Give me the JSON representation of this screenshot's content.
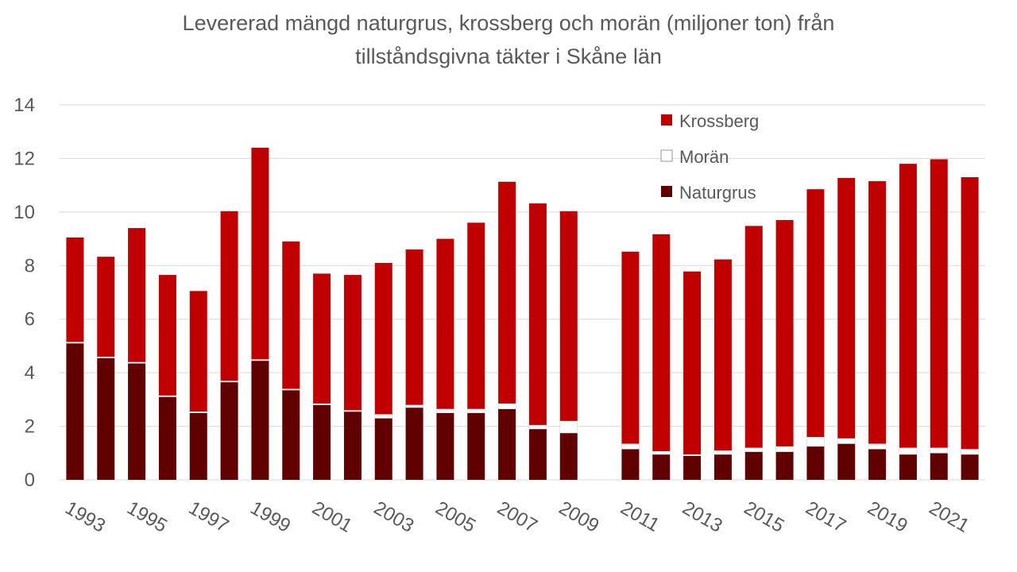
{
  "title_line1": "Levererad mängd naturgrus, krossberg och morän (miljoner ton) från",
  "title_line2": "tillståndsgivna täkter i Skåne län",
  "colors": {
    "krossberg": "#C00000",
    "moran": "#FFFFFF",
    "naturgrus": "#600000",
    "grid": "#D9D9D9",
    "text": "#595959"
  },
  "chart_data": {
    "type": "bar",
    "stacked": true,
    "title": "Levererad mängd naturgrus, krossberg och morän (miljoner ton) från tillståndsgivna täkter i Skåne län",
    "xlabel": "",
    "ylabel": "",
    "ylim": [
      0,
      14
    ],
    "yticks": [
      0,
      2,
      4,
      6,
      8,
      10,
      12,
      14
    ],
    "grid": true,
    "legend_position": "top-right",
    "categories": [
      "1993",
      "1994",
      "1995",
      "1996",
      "1997",
      "1998",
      "1999",
      "2000",
      "2001",
      "2002",
      "2003",
      "2004",
      "2005",
      "2006",
      "2007",
      "2008",
      "2009",
      "2010",
      "2011",
      "2012",
      "2013",
      "2014",
      "2015",
      "2016",
      "2017",
      "2018",
      "2019",
      "2020",
      "2021",
      "2022"
    ],
    "xtick_labels": [
      "1993",
      "1995",
      "1997",
      "1999",
      "2001",
      "2003",
      "2005",
      "2007",
      "2009",
      "2011",
      "2013",
      "2015",
      "2017",
      "2019",
      "2021"
    ],
    "series": [
      {
        "name": "Naturgrus",
        "color": "#600000",
        "values": [
          5.1,
          4.55,
          4.35,
          3.1,
          2.5,
          3.65,
          4.45,
          3.35,
          2.8,
          2.55,
          2.3,
          2.7,
          2.5,
          2.5,
          2.65,
          1.9,
          1.75,
          null,
          1.15,
          0.95,
          0.9,
          0.95,
          1.05,
          1.05,
          1.25,
          1.35,
          1.15,
          0.95,
          1.0,
          0.95
        ]
      },
      {
        "name": "Morän",
        "color": "#FFFFFF",
        "values": [
          0.05,
          0.05,
          0.05,
          0.05,
          0.05,
          0.05,
          0.05,
          0.05,
          0.05,
          0.05,
          0.15,
          0.1,
          0.15,
          0.15,
          0.2,
          0.15,
          0.45,
          null,
          0.2,
          0.12,
          0.05,
          0.15,
          0.15,
          0.2,
          0.35,
          0.2,
          0.2,
          0.25,
          0.2,
          0.2
        ]
      },
      {
        "name": "Krossberg",
        "color": "#C00000",
        "values": [
          3.9,
          3.73,
          5.0,
          4.5,
          4.5,
          6.33,
          7.9,
          5.5,
          4.85,
          5.05,
          5.65,
          5.8,
          6.35,
          6.95,
          8.28,
          8.27,
          7.83,
          null,
          7.17,
          8.1,
          6.83,
          7.13,
          8.28,
          8.45,
          9.25,
          9.72,
          9.8,
          10.6,
          10.77,
          10.15
        ]
      }
    ]
  }
}
